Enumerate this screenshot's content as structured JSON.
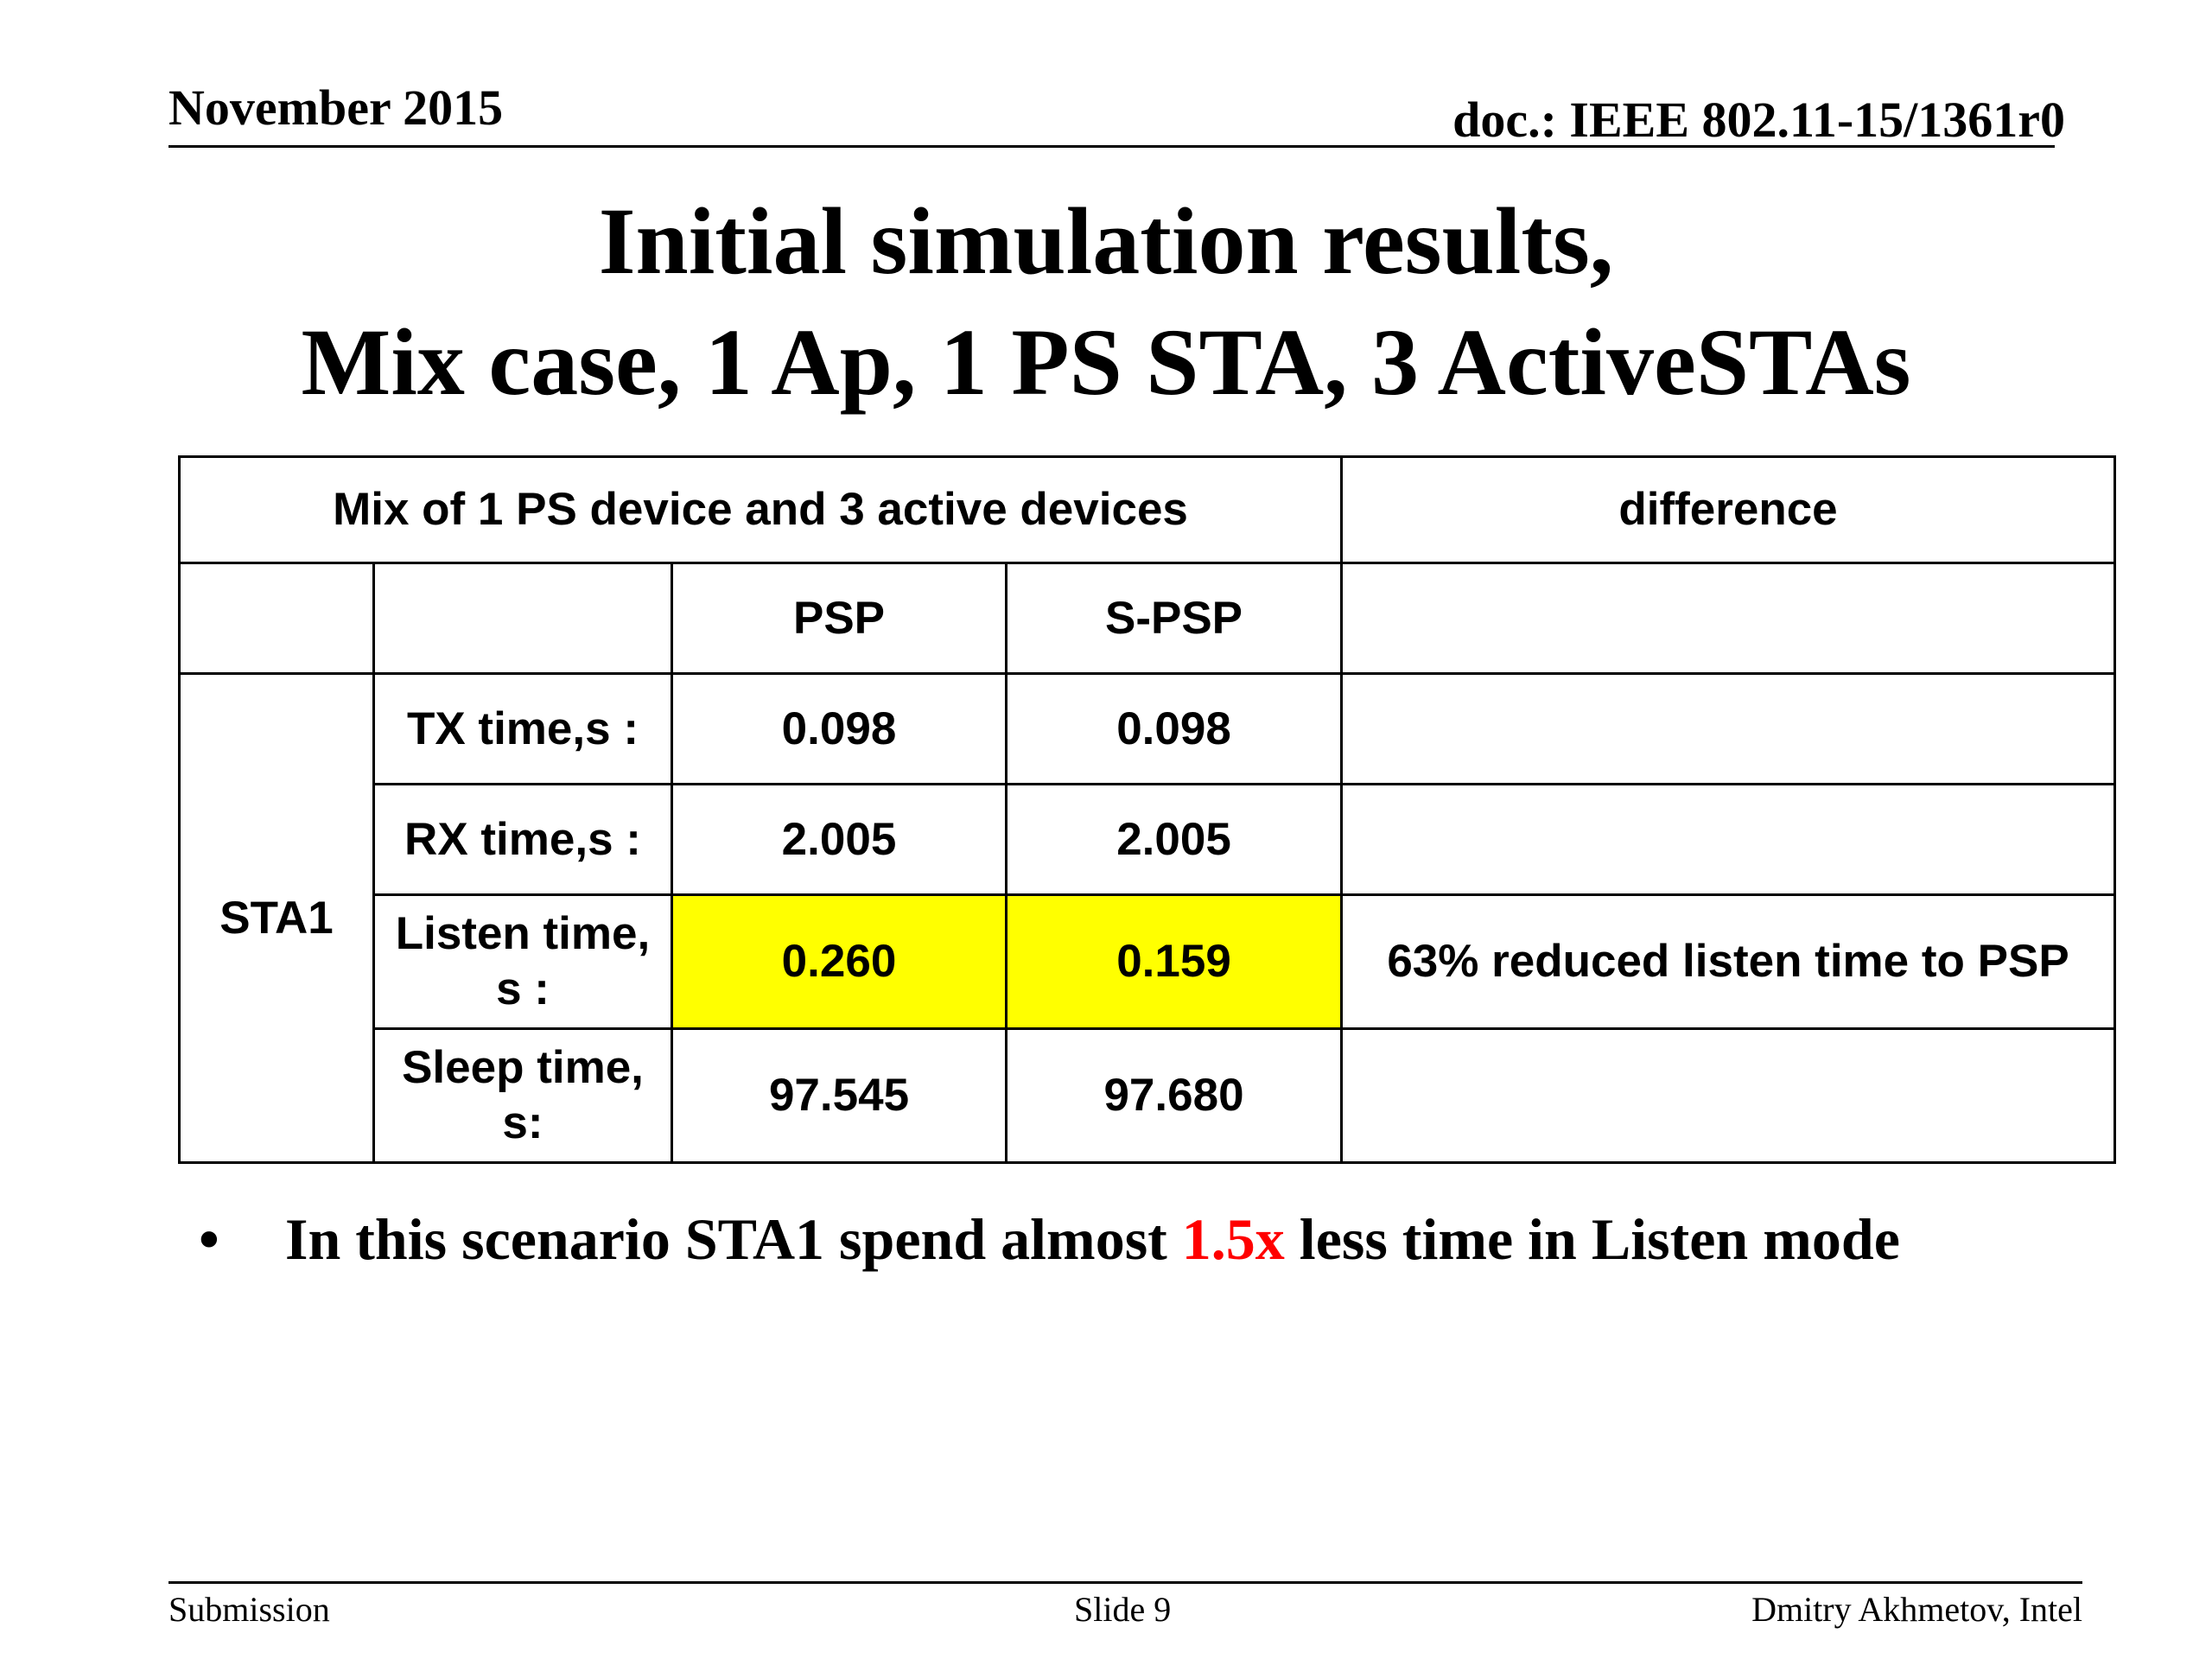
{
  "header": {
    "date": "November 2015",
    "doc": "doc.: IEEE 802.11-15/1361r0"
  },
  "title": {
    "line1": "Initial simulation results,",
    "line2": "Mix case, 1 Ap, 1 PS STA, 3 ActiveSTAs"
  },
  "table": {
    "header_main": "Mix of 1 PS device and 3 active devices",
    "header_diff": "difference",
    "col_psp": "PSP",
    "col_spsp": "S-PSP",
    "group_label": "STA1",
    "highlight_color": "#ffff00",
    "rows": [
      {
        "label": "TX time,s :",
        "psp": "0.098",
        "spsp": "0.098",
        "diff": ""
      },
      {
        "label": "RX time,s :",
        "psp": "2.005",
        "spsp": "2.005",
        "diff": ""
      },
      {
        "label": "Listen time, s :",
        "psp": "0.260",
        "spsp": "0.159",
        "diff": "63% reduced listen time to PSP"
      },
      {
        "label": "Sleep time, s:",
        "psp": "97.545",
        "spsp": "97.680",
        "diff": ""
      }
    ]
  },
  "bullet": {
    "marker": "•",
    "text_before": "In this scenario STA1 spend almost ",
    "highlight": "1.5x",
    "text_after": " less time in Listen mode",
    "highlight_color": "#ff0000"
  },
  "footer": {
    "left": "Submission",
    "center": "Slide 9",
    "right": "Dmitry Akhmetov, Intel"
  }
}
